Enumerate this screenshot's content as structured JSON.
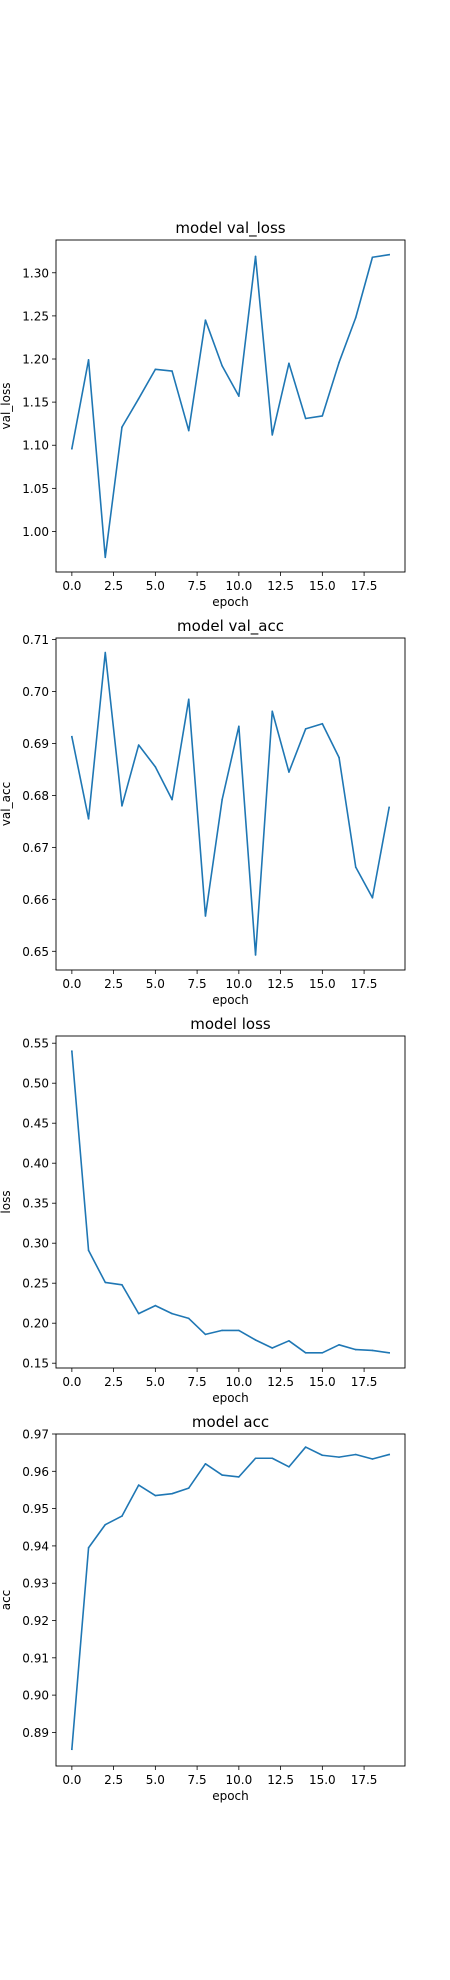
{
  "chart_data": [
    {
      "type": "line",
      "title": "model val_loss",
      "xlabel": "epoch",
      "ylabel": "val_loss",
      "x": [
        0,
        1,
        2,
        3,
        4,
        5,
        6,
        7,
        8,
        9,
        10,
        11,
        12,
        13,
        14,
        15,
        16,
        17,
        18,
        19
      ],
      "series": [
        {
          "values": [
            1.096,
            1.199,
            0.97,
            1.121,
            1.154,
            1.188,
            1.186,
            1.117,
            1.245,
            1.192,
            1.157,
            1.319,
            1.112,
            1.195,
            1.131,
            1.134,
            1.196,
            1.248,
            1.318,
            1.321
          ],
          "color": "#1f77b4"
        }
      ],
      "xlim": [
        -0.95,
        19.95
      ],
      "ylim": [
        0.953,
        1.338
      ],
      "xticks": [
        0.0,
        2.5,
        5.0,
        7.5,
        10.0,
        12.5,
        15.0,
        17.5
      ],
      "xtick_labels": [
        "0.0",
        "2.5",
        "5.0",
        "7.5",
        "10.0",
        "12.5",
        "15.0",
        "17.5"
      ],
      "yticks": [
        1.0,
        1.05,
        1.1,
        1.15,
        1.2,
        1.25,
        1.3
      ],
      "ytick_labels": [
        "1.00",
        "1.05",
        "1.10",
        "1.15",
        "1.20",
        "1.25",
        "1.30"
      ],
      "grid": false
    },
    {
      "type": "line",
      "title": "model val_acc",
      "xlabel": "epoch",
      "ylabel": "val_acc",
      "x": [
        0,
        1,
        2,
        3,
        4,
        5,
        6,
        7,
        8,
        9,
        10,
        11,
        12,
        13,
        14,
        15,
        16,
        17,
        18,
        19
      ],
      "series": [
        {
          "values": [
            0.6913,
            0.6755,
            0.7075,
            0.678,
            0.6897,
            0.6855,
            0.6792,
            0.6985,
            0.6568,
            0.6792,
            0.6933,
            0.6493,
            0.6962,
            0.6845,
            0.6928,
            0.6938,
            0.6873,
            0.6662,
            0.6603,
            0.6777
          ],
          "color": "#1f77b4"
        }
      ],
      "xlim": [
        -0.95,
        19.95
      ],
      "ylim": [
        0.6464,
        0.7103
      ],
      "xticks": [
        0.0,
        2.5,
        5.0,
        7.5,
        10.0,
        12.5,
        15.0,
        17.5
      ],
      "xtick_labels": [
        "0.0",
        "2.5",
        "5.0",
        "7.5",
        "10.0",
        "12.5",
        "15.0",
        "17.5"
      ],
      "yticks": [
        0.65,
        0.66,
        0.67,
        0.68,
        0.69,
        0.7,
        0.71
      ],
      "ytick_labels": [
        "0.65",
        "0.66",
        "0.67",
        "0.68",
        "0.69",
        "0.70",
        "0.71"
      ],
      "grid": false
    },
    {
      "type": "line",
      "title": "model loss",
      "xlabel": "epoch",
      "ylabel": "loss",
      "x": [
        0,
        1,
        2,
        3,
        4,
        5,
        6,
        7,
        8,
        9,
        10,
        11,
        12,
        13,
        14,
        15,
        16,
        17,
        18,
        19
      ],
      "series": [
        {
          "values": [
            0.54,
            0.291,
            0.251,
            0.248,
            0.212,
            0.222,
            0.212,
            0.206,
            0.186,
            0.191,
            0.191,
            0.179,
            0.169,
            0.178,
            0.163,
            0.163,
            0.173,
            0.167,
            0.166,
            0.163
          ],
          "color": "#1f77b4"
        }
      ],
      "xlim": [
        -0.95,
        19.95
      ],
      "ylim": [
        0.144,
        0.559
      ],
      "xticks": [
        0.0,
        2.5,
        5.0,
        7.5,
        10.0,
        12.5,
        15.0,
        17.5
      ],
      "xtick_labels": [
        "0.0",
        "2.5",
        "5.0",
        "7.5",
        "10.0",
        "12.5",
        "15.0",
        "17.5"
      ],
      "yticks": [
        0.15,
        0.2,
        0.25,
        0.3,
        0.35,
        0.4,
        0.45,
        0.5,
        0.55
      ],
      "ytick_labels": [
        "0.15",
        "0.20",
        "0.25",
        "0.30",
        "0.35",
        "0.40",
        "0.45",
        "0.50",
        "0.55"
      ],
      "grid": false
    },
    {
      "type": "line",
      "title": "model acc",
      "xlabel": "epoch",
      "ylabel": "acc",
      "x": [
        0,
        1,
        2,
        3,
        4,
        5,
        6,
        7,
        8,
        9,
        10,
        11,
        12,
        13,
        14,
        15,
        16,
        17,
        18,
        19
      ],
      "series": [
        {
          "values": [
            0.8855,
            0.9395,
            0.9457,
            0.948,
            0.9563,
            0.9535,
            0.954,
            0.9555,
            0.962,
            0.959,
            0.9585,
            0.9635,
            0.9635,
            0.9612,
            0.9665,
            0.9643,
            0.9638,
            0.9645,
            0.9633,
            0.9645
          ],
          "color": "#1f77b4"
        }
      ],
      "xlim": [
        -0.95,
        19.95
      ],
      "ylim": [
        0.881,
        0.97
      ],
      "xticks": [
        0.0,
        2.5,
        5.0,
        7.5,
        10.0,
        12.5,
        15.0,
        17.5
      ],
      "xtick_labels": [
        "0.0",
        "2.5",
        "5.0",
        "7.5",
        "10.0",
        "12.5",
        "15.0",
        "17.5"
      ],
      "yticks": [
        0.89,
        0.9,
        0.91,
        0.92,
        0.93,
        0.94,
        0.95,
        0.96,
        0.97
      ],
      "ytick_labels": [
        "0.89",
        "0.90",
        "0.91",
        "0.92",
        "0.93",
        "0.94",
        "0.95",
        "0.96",
        "0.97"
      ],
      "grid": false
    }
  ]
}
